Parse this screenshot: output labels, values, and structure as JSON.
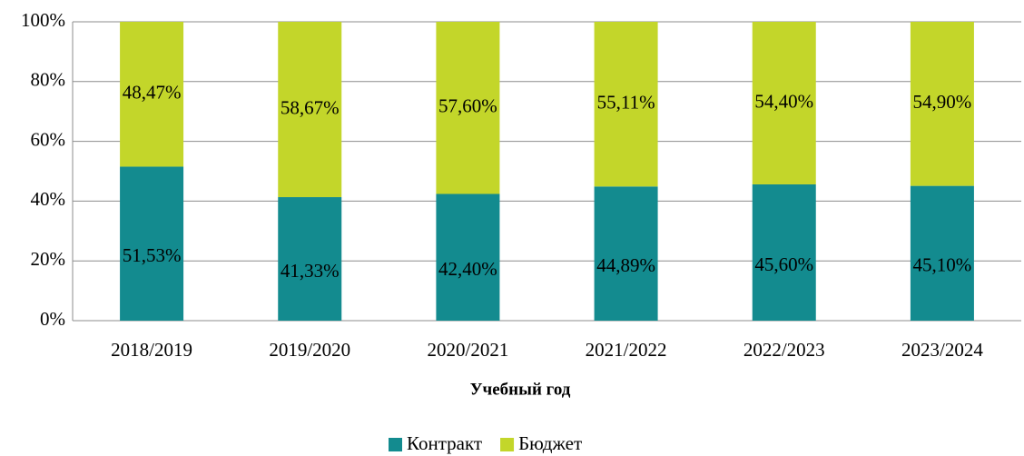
{
  "chart_data": {
    "type": "stacked_bar",
    "x_label": "Учебный год",
    "categories": [
      "2018/2019",
      "2019/2020",
      "2020/2021",
      "2021/2022",
      "2022/2023",
      "2023/2024"
    ],
    "series": [
      {
        "name": "Контракт",
        "color": "#138b8f",
        "values": [
          51.53,
          41.33,
          42.4,
          44.89,
          45.6,
          45.1
        ],
        "value_labels": [
          "51,53%",
          "41,33%",
          "42,40%",
          "44,89%",
          "45,60%",
          "45,10%"
        ]
      },
      {
        "name": "Бюджет",
        "color": "#c3d62a",
        "values": [
          48.47,
          58.67,
          57.6,
          55.11,
          54.4,
          54.9
        ],
        "value_labels": [
          "48,47%",
          "58,67%",
          "57,60%",
          "55,11%",
          "54,40%",
          "54,90%"
        ]
      }
    ],
    "ylim": [
      0,
      100
    ],
    "yticks": [
      {
        "value": 0,
        "label": "0%"
      },
      {
        "value": 20,
        "label": "20%"
      },
      {
        "value": 40,
        "label": "40%"
      },
      {
        "value": 60,
        "label": "60%"
      },
      {
        "value": 80,
        "label": "80%"
      },
      {
        "value": 100,
        "label": "100%"
      }
    ],
    "grid": true,
    "legend": "bottom"
  }
}
